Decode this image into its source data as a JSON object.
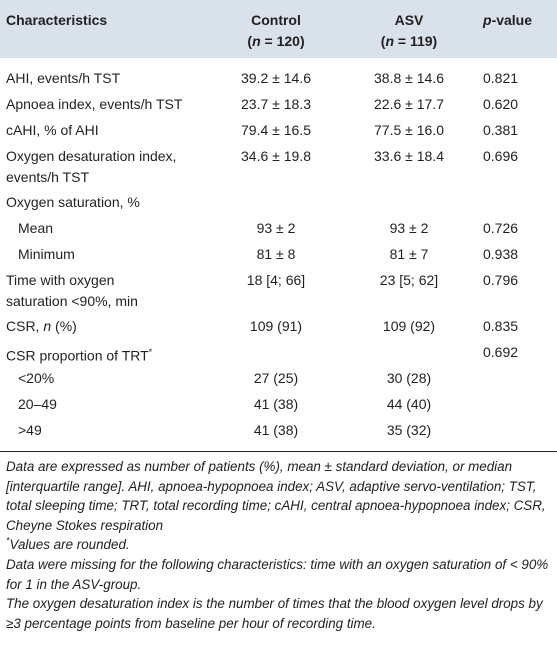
{
  "header": {
    "characteristics": "Characteristics",
    "control": "Control",
    "control_n": "(n = 120)",
    "asv": "ASV",
    "asv_n": "(n = 119)",
    "pvalue": "p-value"
  },
  "rows": [
    {
      "label": "AHI, events/h TST",
      "control": "39.2 ± 14.6",
      "asv": "38.8 ± 14.6",
      "p": "0.821"
    },
    {
      "label": "Apnoea index, events/h TST",
      "control": "23.7 ± 18.3",
      "asv": "22.6 ± 17.7",
      "p": "0.620"
    },
    {
      "label": "cAHI, % of AHI",
      "control": "79.4 ± 16.5",
      "asv": "77.5 ± 16.0",
      "p": "0.381"
    },
    {
      "label": "Oxygen desaturation index,",
      "label2": "events/h TST",
      "control": "34.6 ± 19.8",
      "asv": "33.6 ± 18.4",
      "p": "0.696"
    },
    {
      "label": "Oxygen saturation, %",
      "control": "",
      "asv": "",
      "p": ""
    },
    {
      "label": "Mean",
      "control": "93 ± 2",
      "asv": "93 ± 2",
      "p": "0.726"
    },
    {
      "label": "Minimum",
      "control": "81 ± 8",
      "asv": "81 ± 7",
      "p": "0.938"
    },
    {
      "label": "Time with oxygen",
      "label2": "saturation <90%, min",
      "control": "18 [4; 66]",
      "asv": "23 [5; 62]",
      "p": "0.796"
    },
    {
      "label_pre": "CSR, ",
      "label_it": "n",
      "label_post": " (%)",
      "control": "109 (91)",
      "asv": "109 (92)",
      "p": "0.835"
    },
    {
      "label": "CSR proportion of TRT",
      "label_sup": "*",
      "control": "",
      "asv": "",
      "p": "0.692"
    },
    {
      "label": "<20%",
      "control": "27 (25)",
      "asv": "30 (28)",
      "p": ""
    },
    {
      "label": "20–49",
      "control": "41 (38)",
      "asv": "44 (40)",
      "p": ""
    },
    {
      "label": ">49",
      "control": "41 (38)",
      "asv": "35 (32)",
      "p": ""
    }
  ],
  "notes": {
    "n1": "Data are expressed as number of patients (%), mean ± standard deviation, or median [interquartile range]. AHI, apnoea-hypopnoea index; ASV, adaptive servo-ventilation; TST, total sleeping time; TRT, total recording time; cAHI, central apnoea-hypopnoea index; CSR, Cheyne Stokes respiration",
    "n2_mark": "*",
    "n2": "Values are rounded.",
    "n3": "Data were missing for the following characteristics: time with an oxygen saturation of < 90% for 1 in the ASV-group.",
    "n4": "The oxygen desaturation index is the number of times that the blood oxygen level drops by ≥3 percentage points from baseline per hour of recording time."
  }
}
